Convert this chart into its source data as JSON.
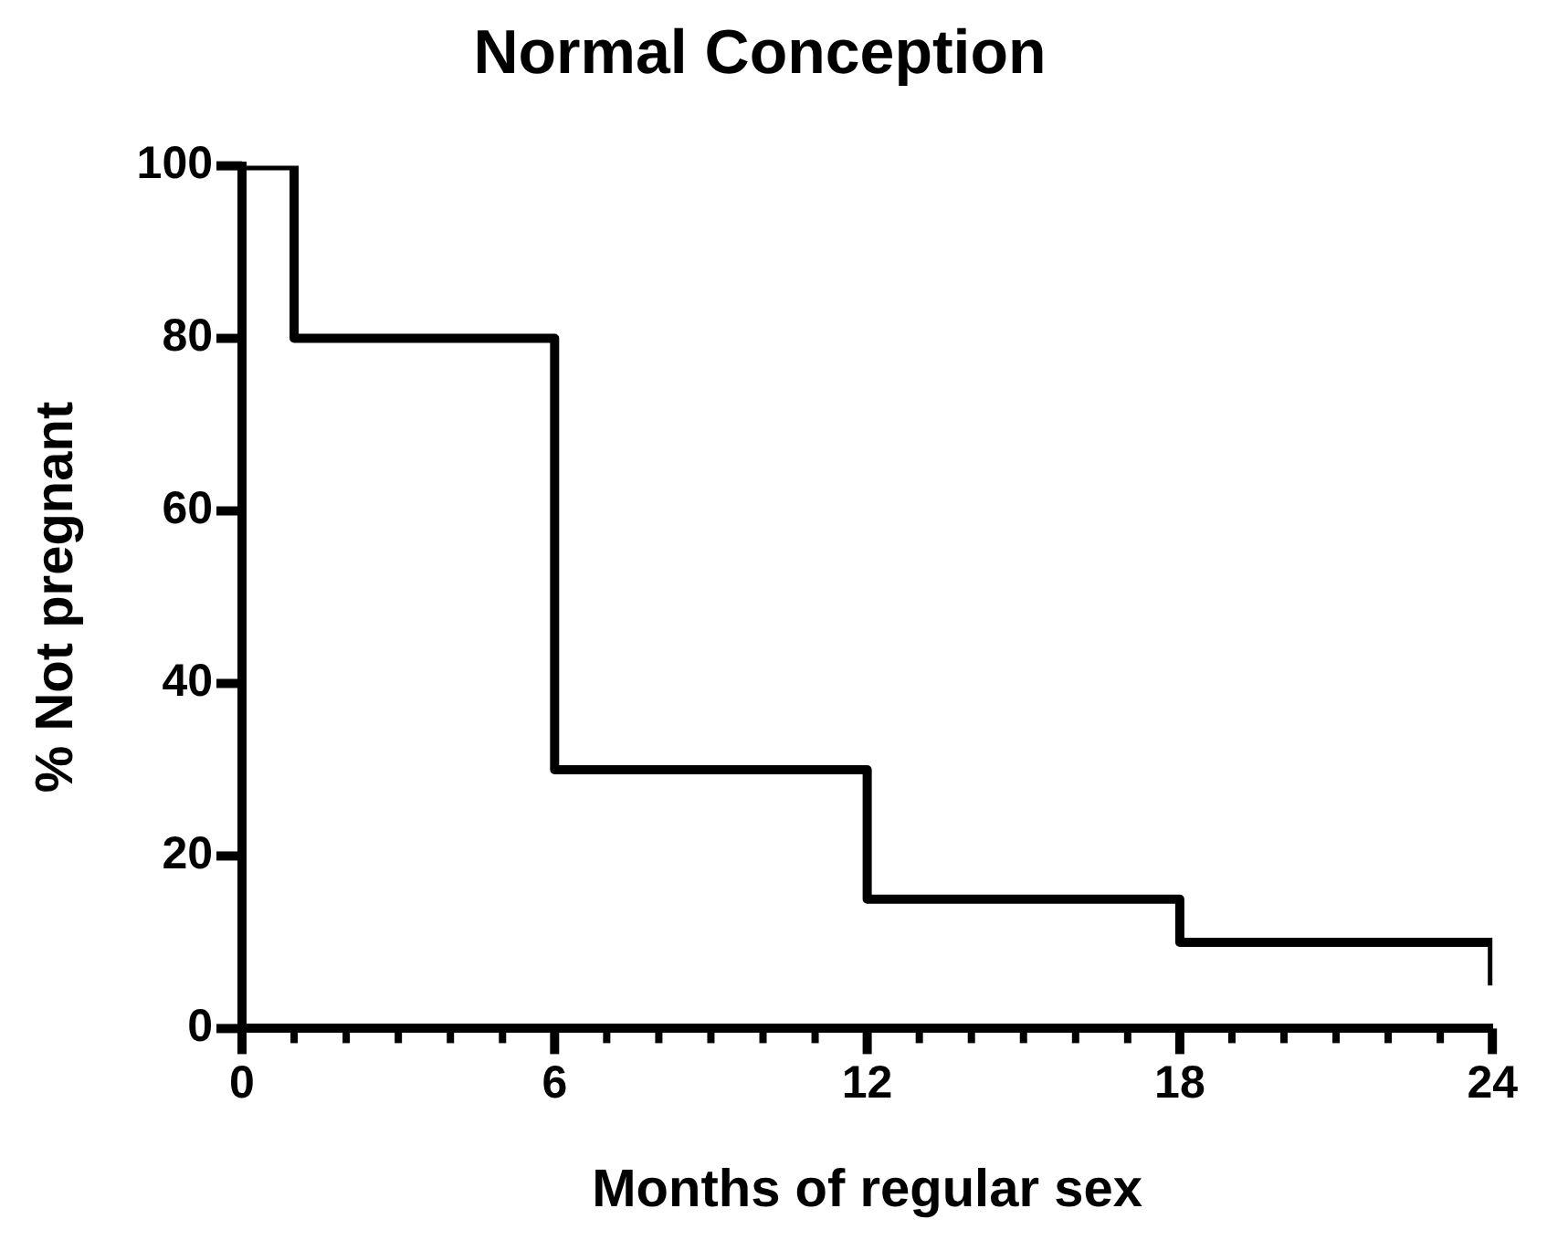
{
  "chart_data": {
    "type": "step",
    "title": "Normal Conception",
    "xlabel": "Months of regular sex",
    "ylabel": "% Not pregnant",
    "x": [
      0,
      1,
      6,
      12,
      18,
      24
    ],
    "series": [
      {
        "color": "#000000",
        "values": [
          100,
          80,
          30,
          15,
          10,
          5
        ]
      }
    ],
    "xlim": [
      0,
      24
    ],
    "xticks": [
      0,
      {
        "value": 1,
        "label": null
      },
      {
        "value": 2,
        "label": null
      },
      {
        "value": 3,
        "label": null
      },
      {
        "value": 4,
        "label": null
      },
      {
        "value": 5,
        "label": null
      },
      6,
      {
        "value": 7,
        "label": null
      },
      {
        "value": 8,
        "label": null
      },
      {
        "value": 9,
        "label": null
      },
      {
        "value": 10,
        "label": null
      },
      {
        "value": 11,
        "label": null
      },
      12,
      {
        "value": 13,
        "label": null
      },
      {
        "value": 14,
        "label": null
      },
      {
        "value": 15,
        "label": null
      },
      {
        "value": 16,
        "label": null
      },
      {
        "value": 17,
        "label": null
      },
      18,
      {
        "value": 19,
        "label": null
      },
      {
        "value": 20,
        "label": null
      },
      {
        "value": 21,
        "label": null
      },
      {
        "value": 22,
        "label": null
      },
      {
        "value": 23,
        "label": null
      },
      24
    ],
    "ylim": [
      0,
      100
    ],
    "yticks": [
      0,
      20,
      40,
      60,
      80,
      100
    ],
    "grid": false,
    "legend": false,
    "marker": "none",
    "line_style": "solid"
  }
}
